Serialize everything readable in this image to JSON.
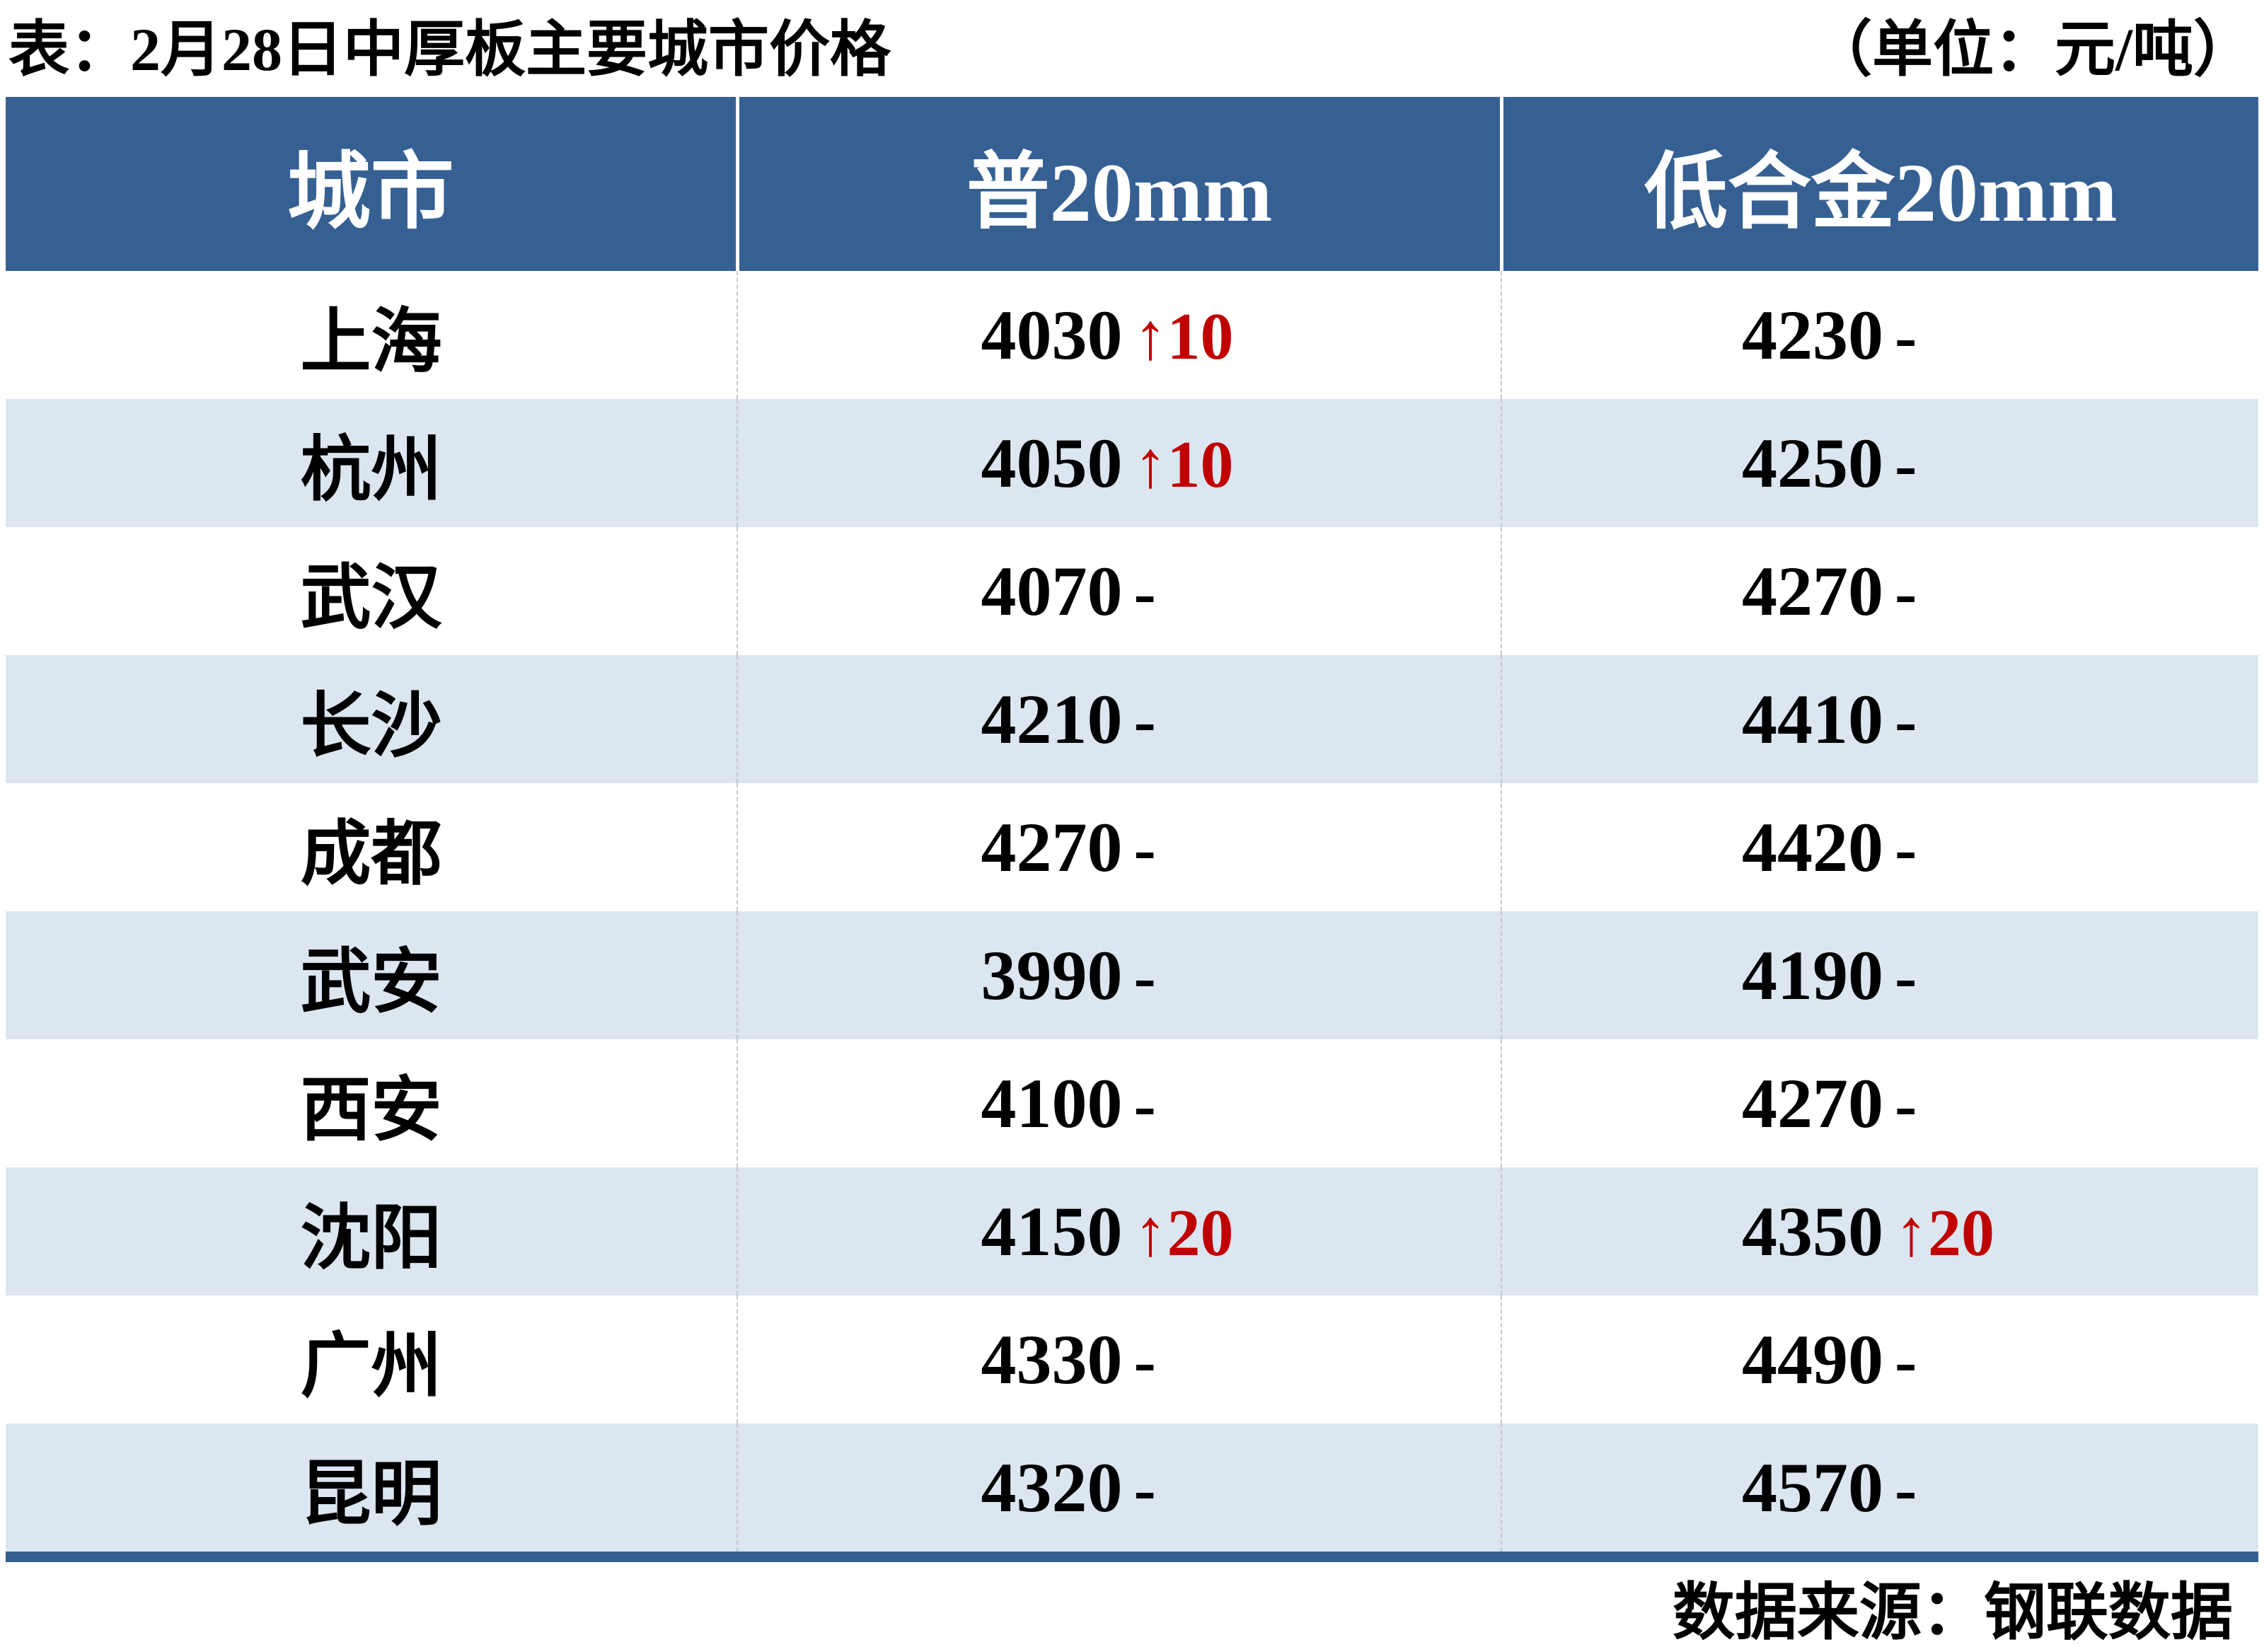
{
  "chart_data": {
    "type": "table",
    "title": "表：2月28日中厚板主要城市价格",
    "unit": "（单位：元/吨）",
    "columns": [
      "城市",
      "普20mm",
      "低合金20mm"
    ],
    "rows": [
      {
        "city": "上海",
        "pu20": "4030",
        "pu20_change": "↑10",
        "lhj20": "4230",
        "lhj20_change": "-"
      },
      {
        "city": "杭州",
        "pu20": "4050",
        "pu20_change": "↑10",
        "lhj20": "4250",
        "lhj20_change": "-"
      },
      {
        "city": "武汉",
        "pu20": "4070",
        "pu20_change": "-",
        "lhj20": "4270",
        "lhj20_change": "-"
      },
      {
        "city": "长沙",
        "pu20": "4210",
        "pu20_change": "-",
        "lhj20": "4410",
        "lhj20_change": "-"
      },
      {
        "city": "成都",
        "pu20": "4270",
        "pu20_change": "-",
        "lhj20": "4420",
        "lhj20_change": "-"
      },
      {
        "city": "武安",
        "pu20": "3990",
        "pu20_change": "-",
        "lhj20": "4190",
        "lhj20_change": "-"
      },
      {
        "city": "西安",
        "pu20": "4100",
        "pu20_change": "-",
        "lhj20": "4270",
        "lhj20_change": "-"
      },
      {
        "city": "沈阳",
        "pu20": "4150",
        "pu20_change": "↑20",
        "lhj20": "4350",
        "lhj20_change": "↑20"
      },
      {
        "city": "广州",
        "pu20": "4330",
        "pu20_change": "-",
        "lhj20": "4490",
        "lhj20_change": "-"
      },
      {
        "city": "昆明",
        "pu20": "4320",
        "pu20_change": "-",
        "lhj20": "4570",
        "lhj20_change": "-"
      }
    ],
    "source": "数据来源：钢联数据"
  },
  "colors": {
    "header_bg": "#366092",
    "stripe_bg": "#dce6f1",
    "up_red": "#c00000",
    "divider_dash": "#c4c8cc"
  }
}
